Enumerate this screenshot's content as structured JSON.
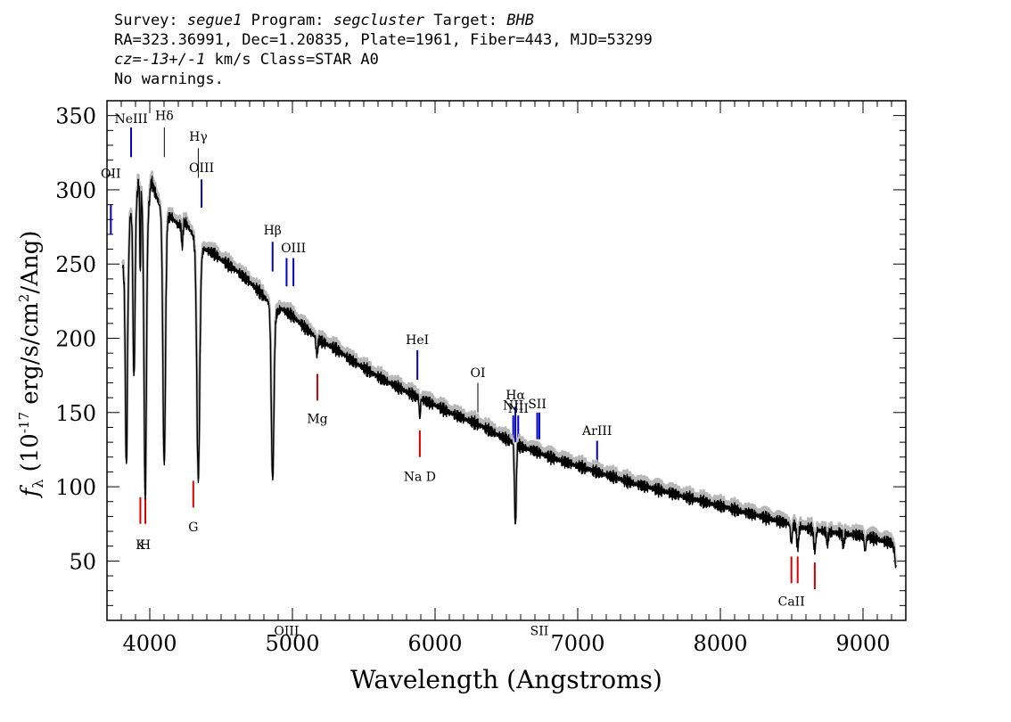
{
  "header": {
    "survey_label": "Survey:",
    "survey": "segue1",
    "program_label": "Program:",
    "program": "segcluster",
    "target_label": "Target:",
    "target": "BHB",
    "line2": "RA=323.36991, Dec=1.20835, Plate=1961, Fiber=443, MJD=53299",
    "cz_label": "cz=",
    "cz_value": "-13+/-1",
    "cz_rest": " km/s Class=STAR A0",
    "line4": "No warnings."
  },
  "chart_data": {
    "type": "line",
    "xlabel": "Wavelength (Angstroms)",
    "ylabel_symbol": "f",
    "ylabel_sub": "λ",
    "ylabel_text": "(10",
    "ylabel_exp": "-17",
    "ylabel_units": "erg/s/cm",
    "ylabel_units_exp": "2",
    "ylabel_end": "/Ang)",
    "xlim": [
      3700,
      9300
    ],
    "ylim": [
      10,
      360
    ],
    "xticks": [
      4000,
      5000,
      6000,
      7000,
      8000,
      9000
    ],
    "xtick_labels": [
      "4000",
      "5000",
      "6000",
      "7000",
      "8000",
      "9000"
    ],
    "yticks": [
      50,
      100,
      150,
      200,
      250,
      300,
      350
    ],
    "ytick_labels": [
      "50",
      "100",
      "150",
      "200",
      "250",
      "300",
      "350"
    ],
    "colors": {
      "spectrum": "#000000",
      "error": "#b8b8b8",
      "emission": "#0000cc",
      "absorption": "#dd0000",
      "balmer": "#000000"
    },
    "spectrum_anchors": [
      [
        3800,
        260
      ],
      [
        3820,
        240
      ],
      [
        3840,
        200
      ],
      [
        3860,
        280
      ],
      [
        3880,
        290
      ],
      [
        3900,
        285
      ],
      [
        3920,
        305
      ],
      [
        3940,
        300
      ],
      [
        3970,
        260
      ],
      [
        3990,
        285
      ],
      [
        4010,
        306
      ],
      [
        4030,
        300
      ],
      [
        4060,
        292
      ],
      [
        4100,
        280
      ],
      [
        4150,
        282
      ],
      [
        4200,
        276
      ],
      [
        4250,
        278
      ],
      [
        4300,
        270
      ],
      [
        4340,
        255
      ],
      [
        4380,
        260
      ],
      [
        4450,
        257
      ],
      [
        4500,
        253
      ],
      [
        4600,
        246
      ],
      [
        4700,
        238
      ],
      [
        4800,
        228
      ],
      [
        4850,
        222
      ],
      [
        4880,
        216
      ],
      [
        4920,
        220
      ],
      [
        5000,
        215
      ],
      [
        5100,
        206
      ],
      [
        5200,
        198
      ],
      [
        5300,
        193
      ],
      [
        5400,
        186
      ],
      [
        5500,
        180
      ],
      [
        5600,
        174
      ],
      [
        5700,
        169
      ],
      [
        5800,
        164
      ],
      [
        5900,
        159
      ],
      [
        6000,
        155
      ],
      [
        6100,
        150
      ],
      [
        6200,
        146
      ],
      [
        6300,
        142
      ],
      [
        6400,
        137
      ],
      [
        6500,
        132
      ],
      [
        6600,
        127
      ],
      [
        6700,
        124
      ],
      [
        6800,
        120
      ],
      [
        6900,
        117
      ],
      [
        7000,
        114
      ],
      [
        7100,
        111
      ],
      [
        7200,
        108
      ],
      [
        7400,
        102
      ],
      [
        7600,
        97
      ],
      [
        7800,
        92
      ],
      [
        8000,
        87
      ],
      [
        8200,
        82
      ],
      [
        8400,
        77
      ],
      [
        8600,
        72
      ],
      [
        8800,
        69
      ],
      [
        9000,
        67
      ],
      [
        9200,
        62
      ],
      [
        9230,
        55
      ]
    ],
    "absorption_dips": [
      [
        3835,
        95,
        6
      ],
      [
        3889,
        115,
        7
      ],
      [
        3933,
        60,
        3
      ],
      [
        3968,
        170,
        8
      ],
      [
        4101,
        165,
        9
      ],
      [
        4227,
        15,
        5
      ],
      [
        4340,
        150,
        10
      ],
      [
        4861,
        115,
        9
      ],
      [
        5172,
        12,
        6
      ],
      [
        5893,
        14,
        4
      ],
      [
        6563,
        55,
        6
      ],
      [
        8498,
        12,
        6
      ],
      [
        8542,
        14,
        7
      ],
      [
        8662,
        14,
        7
      ],
      [
        8750,
        8,
        6
      ],
      [
        8863,
        8,
        6
      ],
      [
        9015,
        10,
        6
      ],
      [
        9230,
        10,
        5
      ]
    ],
    "line_markers": [
      {
        "label": "OII",
        "kind": "emission",
        "x": 3727,
        "y0": 270,
        "y1": 290,
        "label_y": 308
      },
      {
        "label": "NeIII",
        "kind": "emission",
        "x": 3869,
        "y0": 322,
        "y1": 342,
        "label_y": 345
      },
      {
        "label": "Hδ",
        "kind": "balmer",
        "x": 4102,
        "y0": 322,
        "y1": 342,
        "label_y": 347
      },
      {
        "label": "Hγ",
        "kind": "balmer",
        "x": 4340,
        "y0": 308,
        "y1": 328,
        "label_y": 333
      },
      {
        "label": "OIII",
        "kind": "emission",
        "x": 4363,
        "y0": 288,
        "y1": 307,
        "label_y": 312
      },
      {
        "label": "Hβ",
        "kind": "emission",
        "x": 4861,
        "y0": 245,
        "y1": 265,
        "label_y": 270
      },
      {
        "label": "OIII",
        "kind": "emission",
        "x": 4959,
        "y0": 235,
        "y1": 254,
        "label_y": 0
      },
      {
        "label": "OIII",
        "kind": "emission",
        "x": 5007,
        "y0": 235,
        "y1": 254,
        "label_y": 258
      },
      {
        "label": "HeI",
        "kind": "emission",
        "x": 5876,
        "y0": 172,
        "y1": 192,
        "label_y": 196
      },
      {
        "label": "OI",
        "kind": "balmer",
        "x": 6300,
        "y0": 150,
        "y1": 170,
        "label_y": 174
      },
      {
        "label": "NII",
        "kind": "emission",
        "x": 6548,
        "y0": 130,
        "y1": 148,
        "label_y": 152
      },
      {
        "label": "Hα",
        "kind": "emission",
        "x": 6563,
        "y0": 130,
        "y1": 154,
        "label_y": 159
      },
      {
        "label": "NII",
        "kind": "emission",
        "x": 6583,
        "y0": 130,
        "y1": 148,
        "label_y": 150
      },
      {
        "label": "SII",
        "kind": "emission",
        "x": 6716,
        "y0": 132,
        "y1": 150,
        "label_y": 153
      },
      {
        "label": "SII",
        "kind": "emission",
        "x": 6731,
        "y0": 132,
        "y1": 150,
        "label_y": 0
      },
      {
        "label": "ArIII",
        "kind": "emission",
        "x": 7136,
        "y0": 113,
        "y1": 131,
        "label_y": 135
      },
      {
        "label": "Mg",
        "kind": "absorption",
        "x": 5175,
        "y0": 158,
        "y1": 176,
        "label_y": 143
      },
      {
        "label": "Na  D",
        "kind": "absorption",
        "x": 5893,
        "y0": 120,
        "y1": 138,
        "label_y": 104
      },
      {
        "label": "K",
        "kind": "absorption",
        "x": 3934,
        "y0": 75,
        "y1": 93,
        "label_y": 58
      },
      {
        "label": "H",
        "kind": "absorption",
        "x": 3969,
        "y0": 75,
        "y1": 93,
        "label_y": 58
      },
      {
        "label": "G",
        "kind": "absorption",
        "x": 4305,
        "y0": 86,
        "y1": 104,
        "label_y": 70
      },
      {
        "label": "CaII",
        "kind": "absorption",
        "x": 8498,
        "y0": 35,
        "y1": 53,
        "label_y": 20
      },
      {
        "label": "",
        "kind": "absorption",
        "x": 8542,
        "y0": 35,
        "y1": 53,
        "label_y": 0
      },
      {
        "label": "",
        "kind": "absorption",
        "x": 8662,
        "y0": 31,
        "y1": 49,
        "label_y": 0
      }
    ]
  }
}
